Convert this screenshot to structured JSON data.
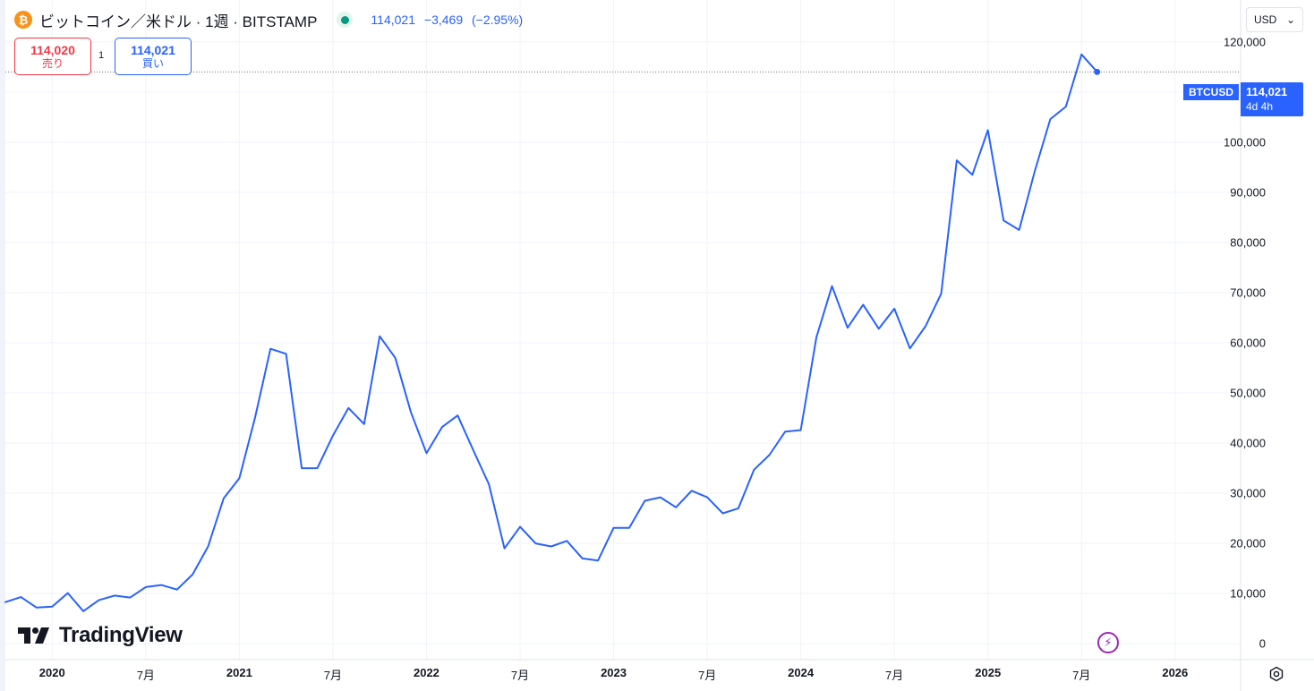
{
  "header": {
    "coin_icon_glyph": "₿",
    "title": "ビットコイン／米ドル · 1週 · BITSTAMP",
    "last": "114,021",
    "change": "−3,469",
    "change_pct": "(−2.95%)",
    "sell_price": "114,020",
    "sell_label": "売り",
    "quantity": "1",
    "buy_price": "114,021",
    "buy_label": "買い",
    "currency": "USD",
    "currency_caret": "⌄"
  },
  "price_tag": {
    "symbol": "BTCUSD",
    "value": "114,021",
    "countdown": "4d 4h"
  },
  "watermark": "TradingView",
  "icons": [
    "bitcoin-icon",
    "status-dot-icon",
    "chevron-down-icon",
    "tradingview-logo-icon",
    "lightning-icon",
    "gear-icon"
  ],
  "colors": {
    "line": "#2962ff",
    "sell": "#f23645",
    "buy": "#2962ff",
    "coin": "#f7931a",
    "status": "#089981",
    "event": "#9c27b0"
  },
  "chart_data": {
    "type": "line",
    "series": [
      {
        "x": [
          "2019-10",
          "2019-11",
          "2019-12",
          "2020-01",
          "2020-02",
          "2020-03",
          "2020-04",
          "2020-05",
          "2020-06",
          "2020-07",
          "2020-08",
          "2020-09",
          "2020-10",
          "2020-11",
          "2020-12",
          "2021-01",
          "2021-02",
          "2021-03",
          "2021-04",
          "2021-05",
          "2021-06",
          "2021-07",
          "2021-08",
          "2021-09",
          "2021-10",
          "2021-11",
          "2021-12",
          "2022-01",
          "2022-02",
          "2022-03",
          "2022-04",
          "2022-05",
          "2022-06",
          "2022-07",
          "2022-08",
          "2022-09",
          "2022-10",
          "2022-11",
          "2022-12",
          "2023-01",
          "2023-02",
          "2023-03",
          "2023-04",
          "2023-05",
          "2023-06",
          "2023-07",
          "2023-08",
          "2023-09",
          "2023-10",
          "2023-11",
          "2023-12",
          "2024-01",
          "2024-02",
          "2024-03",
          "2024-04",
          "2024-05",
          "2024-06",
          "2024-07",
          "2024-08",
          "2024-09",
          "2024-10",
          "2024-11",
          "2024-12",
          "2025-01",
          "2025-02",
          "2025-03",
          "2025-04",
          "2025-05",
          "2025-06",
          "2025-07",
          "2025-08"
        ],
        "values": [
          8300,
          9300,
          7200,
          7400,
          10100,
          6500,
          8700,
          9600,
          9200,
          11300,
          11700,
          10800,
          13800,
          19400,
          29000,
          33000,
          45000,
          58800,
          57800,
          35000,
          35000,
          41500,
          47000,
          43800,
          61300,
          57000,
          46200,
          38000,
          43200,
          45500,
          38600,
          31800,
          19000,
          23300,
          20000,
          19400,
          20500,
          17000,
          16600,
          23100,
          23100,
          28500,
          29200,
          27200,
          30500,
          29200,
          26000,
          27000,
          34700,
          37700,
          42300,
          42600,
          61100,
          71300,
          63000,
          67600,
          62800,
          66800,
          58900,
          63300,
          69800,
          96400,
          93500,
          102400,
          84400,
          82500,
          94200,
          104600,
          107100,
          117500,
          114021
        ]
      }
    ],
    "title": "",
    "xlabel": "",
    "ylabel": "",
    "ylim": [
      -3000,
      125500
    ],
    "y_ticks": [
      0,
      10000,
      20000,
      30000,
      40000,
      50000,
      60000,
      70000,
      80000,
      90000,
      100000,
      110000,
      120000
    ],
    "y_tick_labels": [
      "0",
      "10,000",
      "20,000",
      "30,000",
      "40,000",
      "50,000",
      "60,000",
      "70,000",
      "80,000",
      "90,000",
      "100,000",
      "",
      "120,000"
    ],
    "x_ticks": [
      {
        "at": "2020-01",
        "label": "2020",
        "major": true
      },
      {
        "at": "2020-07",
        "label": "7月",
        "major": false
      },
      {
        "at": "2021-01",
        "label": "2021",
        "major": true
      },
      {
        "at": "2021-07",
        "label": "7月",
        "major": false
      },
      {
        "at": "2022-01",
        "label": "2022",
        "major": true
      },
      {
        "at": "2022-07",
        "label": "7月",
        "major": false
      },
      {
        "at": "2023-01",
        "label": "2023",
        "major": true
      },
      {
        "at": "2023-07",
        "label": "7月",
        "major": false
      },
      {
        "at": "2024-01",
        "label": "2024",
        "major": true
      },
      {
        "at": "2024-07",
        "label": "7月",
        "major": false
      },
      {
        "at": "2025-01",
        "label": "2025",
        "major": true
      },
      {
        "at": "2025-07",
        "label": "7月",
        "major": false
      },
      {
        "at": "2026-01",
        "label": "2026",
        "major": true
      }
    ],
    "grid": true,
    "legend": "top-left",
    "last_price": 114021
  }
}
